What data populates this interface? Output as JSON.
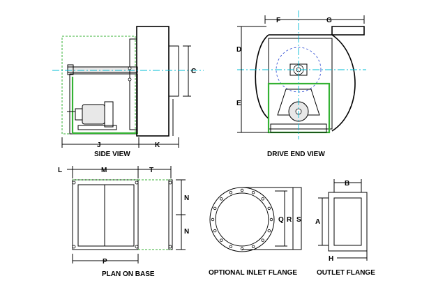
{
  "views": {
    "side": {
      "title": "SIDE VIEW"
    },
    "drive_end": {
      "title": "DRIVE END VIEW"
    },
    "plan": {
      "title": "PLAN ON BASE"
    },
    "inlet": {
      "title": "OPTIONAL INLET FLANGE"
    },
    "outlet": {
      "title": "OUTLET FLANGE"
    }
  },
  "dimensions": {
    "side": {
      "c": "C",
      "j": "J",
      "k": "K"
    },
    "drive_end": {
      "d": "D",
      "e": "E",
      "f": "F",
      "g": "G"
    },
    "plan": {
      "l": "L",
      "m": "M",
      "t": "T",
      "n1": "N",
      "n2": "N",
      "p": "P"
    },
    "inlet": {
      "q": "Q",
      "r": "R",
      "s": "S"
    },
    "outlet": {
      "a": "A",
      "b": "B",
      "h": "H"
    }
  },
  "colors": {
    "line": "#000000",
    "guard": "#34b233",
    "centerline": "#00bcd4",
    "hidden": "#1e3fd0"
  }
}
